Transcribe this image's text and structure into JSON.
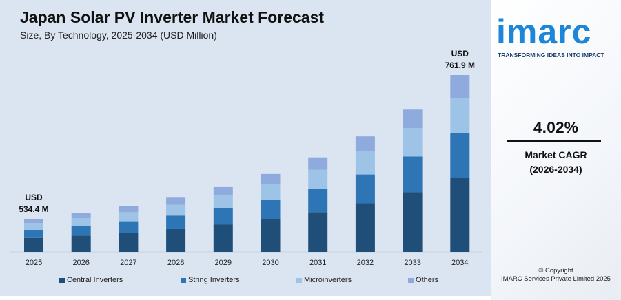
{
  "chart_data": {
    "type": "bar",
    "stacked": true,
    "title": "Japan Solar PV Inverter Market Forecast",
    "subtitle": "Size, By Technology, 2025-2034 (USD Million)",
    "categories": [
      "2025",
      "2026",
      "2027",
      "2028",
      "2029",
      "2030",
      "2031",
      "2032",
      "2033",
      "2034"
    ],
    "series": [
      {
        "name": "Central Inverters",
        "color": "#1f4e79",
        "values": [
          224.4,
          233.5,
          242.8,
          252.6,
          262.8,
          273.3,
          284.3,
          295.7,
          307.6,
          320.0
        ]
      },
      {
        "name": "String Inverters",
        "color": "#2e75b6",
        "values": [
          133.6,
          139.0,
          144.6,
          150.4,
          156.4,
          162.7,
          169.2,
          176.0,
          183.1,
          190.5
        ]
      },
      {
        "name": "Microinverters",
        "color": "#9dc3e6",
        "values": [
          106.9,
          111.2,
          115.6,
          120.3,
          125.1,
          130.1,
          135.4,
          140.8,
          146.5,
          152.4
        ]
      },
      {
        "name": "Others",
        "color": "#8faadc",
        "values": [
          69.5,
          72.2,
          75.2,
          78.1,
          81.3,
          84.6,
          88.0,
          91.6,
          95.2,
          99.0
        ]
      }
    ],
    "totals": [
      534.4,
      555.9,
      578.2,
      601.4,
      625.6,
      650.7,
      676.9,
      704.1,
      732.4,
      761.9
    ],
    "annotations": [
      {
        "category": "2025",
        "line1": "USD",
        "line2": "534.4 M"
      },
      {
        "category": "2034",
        "line1": "USD",
        "line2": "761.9 M"
      }
    ],
    "legend_position": "bottom",
    "grid": false
  },
  "brand": {
    "logo": "imarc",
    "tagline": "TRANSFORMING IDEAS INTO IMPACT",
    "copyright_line1": "© Copyright",
    "copyright_line2": "IMARC Services Private Limited 2025"
  },
  "kpi": {
    "value": "4.02%",
    "label": "Market CAGR",
    "period": "(2026-2034)"
  }
}
